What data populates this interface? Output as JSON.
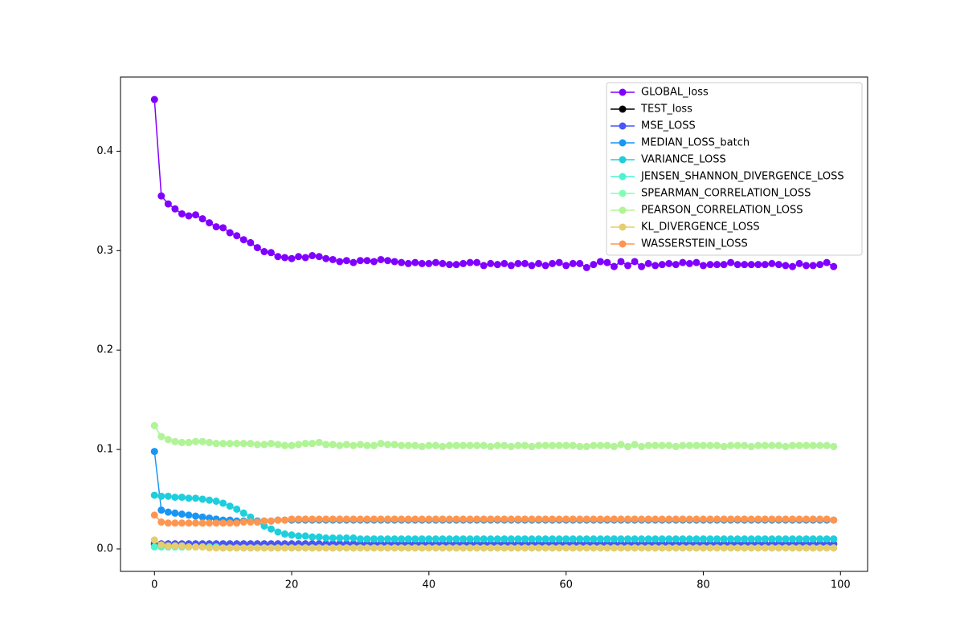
{
  "chart_data": {
    "type": "line",
    "x": [
      0,
      1,
      2,
      3,
      4,
      5,
      6,
      7,
      8,
      9,
      10,
      11,
      12,
      13,
      14,
      15,
      16,
      17,
      18,
      19,
      20,
      21,
      22,
      23,
      24,
      25,
      26,
      27,
      28,
      29,
      30,
      31,
      32,
      33,
      34,
      35,
      36,
      37,
      38,
      39,
      40,
      41,
      42,
      43,
      44,
      45,
      46,
      47,
      48,
      49,
      50,
      51,
      52,
      53,
      54,
      55,
      56,
      57,
      58,
      59,
      60,
      61,
      62,
      63,
      64,
      65,
      66,
      67,
      68,
      69,
      70,
      71,
      72,
      73,
      74,
      75,
      76,
      77,
      78,
      79,
      80,
      81,
      82,
      83,
      84,
      85,
      86,
      87,
      88,
      89,
      90,
      91,
      92,
      93,
      94,
      95,
      96,
      97,
      98,
      99
    ],
    "xlim": [
      -4.95,
      103.95
    ],
    "xticks": [
      0,
      20,
      40,
      60,
      80,
      100
    ],
    "ylim": [
      -0.0226,
      0.4746
    ],
    "yticks": [
      {
        "value": 0,
        "label": "0.0"
      },
      0.1,
      0.2,
      0.3,
      0.4
    ],
    "legend": "upper right",
    "series": [
      {
        "name": "GLOBAL_loss",
        "color": "#8000ff",
        "values": [
          0.452,
          0.355,
          0.347,
          0.342,
          0.337,
          0.335,
          0.336,
          0.332,
          0.328,
          0.324,
          0.323,
          0.318,
          0.315,
          0.311,
          0.308,
          0.303,
          0.299,
          0.298,
          0.294,
          0.293,
          0.292,
          0.294,
          0.293,
          0.295,
          0.294,
          0.292,
          0.291,
          0.289,
          0.29,
          0.288,
          0.29,
          0.29,
          0.289,
          0.291,
          0.29,
          0.289,
          0.288,
          0.287,
          0.288,
          0.287,
          0.287,
          0.288,
          0.287,
          0.286,
          0.286,
          0.287,
          0.288,
          0.288,
          0.285,
          0.287,
          0.286,
          0.287,
          0.285,
          0.287,
          0.287,
          0.285,
          0.287,
          0.285,
          0.287,
          0.288,
          0.285,
          0.287,
          0.287,
          0.283,
          0.286,
          0.289,
          0.288,
          0.284,
          0.289,
          0.285,
          0.289,
          0.284,
          0.287,
          0.285,
          0.286,
          0.287,
          0.286,
          0.288,
          0.287,
          0.288,
          0.285,
          0.286,
          0.286,
          0.286,
          0.288,
          0.286,
          0.286,
          0.286,
          0.286,
          0.286,
          0.287,
          0.286,
          0.285,
          0.284,
          0.287,
          0.285,
          0.285,
          0.286,
          0.288,
          0.284
        ]
      },
      {
        "name": "TEST_loss",
        "color": "#000000",
        "values": [
          0.005,
          0.005,
          0.005,
          0.005,
          0.005,
          0.005,
          0.005,
          0.005,
          0.005,
          0.005,
          0.005,
          0.005,
          0.005,
          0.005,
          0.005,
          0.005,
          0.005,
          0.005,
          0.005,
          0.005,
          0.005,
          0.005,
          0.005,
          0.005,
          0.005,
          0.005,
          0.005,
          0.005,
          0.005,
          0.005,
          0.005,
          0.005,
          0.005,
          0.005,
          0.005,
          0.005,
          0.005,
          0.005,
          0.005,
          0.005,
          0.005,
          0.005,
          0.005,
          0.005,
          0.005,
          0.005,
          0.005,
          0.005,
          0.005,
          0.005,
          0.005,
          0.005,
          0.005,
          0.005,
          0.005,
          0.005,
          0.005,
          0.005,
          0.005,
          0.005,
          0.005,
          0.005,
          0.005,
          0.005,
          0.005,
          0.005,
          0.005,
          0.005,
          0.005,
          0.005,
          0.005,
          0.005,
          0.005,
          0.005,
          0.005,
          0.005,
          0.005,
          0.005,
          0.005,
          0.005,
          0.005,
          0.005,
          0.005,
          0.005,
          0.005,
          0.005,
          0.005,
          0.005,
          0.005,
          0.005,
          0.005,
          0.005,
          0.005,
          0.005,
          0.005,
          0.005,
          0.005,
          0.005,
          0.005,
          0.005
        ]
      },
      {
        "name": "MSE_LOSS",
        "color": "#4856fb",
        "values": [
          0.004,
          0.005,
          0.005,
          0.005,
          0.005,
          0.005,
          0.005,
          0.005,
          0.005,
          0.005,
          0.005,
          0.005,
          0.005,
          0.005,
          0.005,
          0.005,
          0.005,
          0.005,
          0.005,
          0.005,
          0.005,
          0.005,
          0.005,
          0.005,
          0.005,
          0.005,
          0.005,
          0.005,
          0.005,
          0.005,
          0.005,
          0.005,
          0.005,
          0.005,
          0.005,
          0.005,
          0.005,
          0.005,
          0.005,
          0.005,
          0.005,
          0.005,
          0.005,
          0.005,
          0.005,
          0.005,
          0.005,
          0.005,
          0.005,
          0.005,
          0.005,
          0.005,
          0.005,
          0.005,
          0.005,
          0.005,
          0.005,
          0.005,
          0.005,
          0.005,
          0.005,
          0.005,
          0.005,
          0.005,
          0.005,
          0.005,
          0.005,
          0.005,
          0.005,
          0.005,
          0.005,
          0.005,
          0.005,
          0.005,
          0.005,
          0.005,
          0.005,
          0.005,
          0.005,
          0.005,
          0.005,
          0.005,
          0.005,
          0.005,
          0.005,
          0.005,
          0.005,
          0.005,
          0.005,
          0.005,
          0.005,
          0.005,
          0.005,
          0.005,
          0.005,
          0.005,
          0.005,
          0.005,
          0.005,
          0.005
        ]
      },
      {
        "name": "MEDIAN_LOSS_batch",
        "color": "#1996f3",
        "values": [
          0.098,
          0.039,
          0.037,
          0.036,
          0.035,
          0.034,
          0.033,
          0.032,
          0.031,
          0.03,
          0.029,
          0.029,
          0.028,
          0.028,
          0.028,
          0.028,
          0.028,
          0.028,
          0.029,
          0.029,
          0.029,
          0.029,
          0.029,
          0.029,
          0.029,
          0.029,
          0.029,
          0.029,
          0.029,
          0.029,
          0.029,
          0.029,
          0.029,
          0.029,
          0.029,
          0.029,
          0.029,
          0.029,
          0.029,
          0.029,
          0.029,
          0.029,
          0.029,
          0.029,
          0.029,
          0.029,
          0.029,
          0.029,
          0.029,
          0.029,
          0.029,
          0.029,
          0.029,
          0.029,
          0.029,
          0.029,
          0.029,
          0.029,
          0.029,
          0.029,
          0.029,
          0.029,
          0.029,
          0.029,
          0.029,
          0.029,
          0.029,
          0.029,
          0.029,
          0.029,
          0.029,
          0.029,
          0.029,
          0.029,
          0.029,
          0.029,
          0.029,
          0.029,
          0.029,
          0.029,
          0.029,
          0.029,
          0.029,
          0.029,
          0.029,
          0.029,
          0.029,
          0.029,
          0.029,
          0.029,
          0.029,
          0.029,
          0.029,
          0.029,
          0.029,
          0.029,
          0.029,
          0.029,
          0.029,
          0.029
        ]
      },
      {
        "name": "VARIANCE_LOSS",
        "color": "#1dcfdd",
        "values": [
          0.054,
          0.053,
          0.053,
          0.052,
          0.052,
          0.051,
          0.051,
          0.05,
          0.049,
          0.048,
          0.046,
          0.043,
          0.04,
          0.036,
          0.032,
          0.027,
          0.023,
          0.02,
          0.017,
          0.015,
          0.014,
          0.013,
          0.013,
          0.012,
          0.012,
          0.011,
          0.011,
          0.011,
          0.011,
          0.011,
          0.01,
          0.01,
          0.01,
          0.01,
          0.01,
          0.01,
          0.01,
          0.01,
          0.01,
          0.01,
          0.01,
          0.01,
          0.01,
          0.01,
          0.01,
          0.01,
          0.01,
          0.01,
          0.01,
          0.01,
          0.01,
          0.01,
          0.01,
          0.01,
          0.01,
          0.01,
          0.01,
          0.01,
          0.01,
          0.01,
          0.01,
          0.01,
          0.01,
          0.01,
          0.01,
          0.01,
          0.01,
          0.01,
          0.01,
          0.01,
          0.01,
          0.01,
          0.01,
          0.01,
          0.01,
          0.01,
          0.01,
          0.01,
          0.01,
          0.01,
          0.01,
          0.01,
          0.01,
          0.01,
          0.01,
          0.01,
          0.01,
          0.01,
          0.01,
          0.01,
          0.01,
          0.01,
          0.01,
          0.01,
          0.01,
          0.01,
          0.01,
          0.01,
          0.01,
          0.01
        ]
      },
      {
        "name": "JENSEN_SHANNON_DIVERGENCE_LOSS",
        "color": "#4df3ce",
        "values": [
          0.002,
          0.002,
          0.002,
          0.002,
          0.002,
          0.002,
          0.002,
          0.002,
          0.002,
          0.002,
          0.001,
          0.001,
          0.001,
          0.001,
          0.001,
          0.001,
          0.001,
          0.001,
          0.001,
          0.001,
          0.001,
          0.001,
          0.001,
          0.001,
          0.001,
          0.001,
          0.001,
          0.001,
          0.001,
          0.001,
          0.001,
          0.001,
          0.001,
          0.001,
          0.001,
          0.001,
          0.001,
          0.001,
          0.001,
          0.001,
          0.001,
          0.001,
          0.001,
          0.001,
          0.001,
          0.001,
          0.001,
          0.001,
          0.001,
          0.001,
          0.001,
          0.001,
          0.001,
          0.001,
          0.001,
          0.001,
          0.001,
          0.001,
          0.001,
          0.001,
          0.001,
          0.001,
          0.001,
          0.001,
          0.001,
          0.001,
          0.001,
          0.001,
          0.001,
          0.001,
          0.001,
          0.001,
          0.001,
          0.001,
          0.001,
          0.001,
          0.001,
          0.001,
          0.001,
          0.001,
          0.001,
          0.001,
          0.001,
          0.001,
          0.001,
          0.001,
          0.001,
          0.001,
          0.001,
          0.001,
          0.001,
          0.001,
          0.001,
          0.001,
          0.001,
          0.001,
          0.001,
          0.001,
          0.001,
          0.001
        ]
      },
      {
        "name": "SPEARMAN_CORRELATION_LOSS",
        "color": "#80ffb4",
        "values": [
          0.124,
          0.113,
          0.11,
          0.108,
          0.107,
          0.107,
          0.108,
          0.108,
          0.107,
          0.106,
          0.106,
          0.106,
          0.106,
          0.106,
          0.106,
          0.105,
          0.105,
          0.106,
          0.105,
          0.104,
          0.104,
          0.105,
          0.106,
          0.106,
          0.107,
          0.105,
          0.105,
          0.104,
          0.105,
          0.104,
          0.105,
          0.104,
          0.104,
          0.106,
          0.105,
          0.105,
          0.104,
          0.104,
          0.104,
          0.103,
          0.104,
          0.104,
          0.103,
          0.104,
          0.104,
          0.104,
          0.104,
          0.104,
          0.104,
          0.103,
          0.104,
          0.104,
          0.103,
          0.104,
          0.104,
          0.103,
          0.104,
          0.104,
          0.104,
          0.104,
          0.104,
          0.104,
          0.103,
          0.103,
          0.104,
          0.104,
          0.104,
          0.103,
          0.105,
          0.103,
          0.105,
          0.103,
          0.104,
          0.104,
          0.104,
          0.104,
          0.103,
          0.104,
          0.104,
          0.104,
          0.104,
          0.104,
          0.104,
          0.103,
          0.104,
          0.104,
          0.104,
          0.103,
          0.104,
          0.104,
          0.104,
          0.104,
          0.103,
          0.104,
          0.104,
          0.104,
          0.104,
          0.104,
          0.104,
          0.103
        ]
      },
      {
        "name": "PEARSON_CORRELATION_LOSS",
        "color": "#b2f396",
        "values": [
          0.124,
          0.113,
          0.11,
          0.108,
          0.107,
          0.107,
          0.108,
          0.108,
          0.107,
          0.106,
          0.106,
          0.106,
          0.106,
          0.106,
          0.106,
          0.105,
          0.105,
          0.106,
          0.105,
          0.104,
          0.104,
          0.105,
          0.106,
          0.106,
          0.107,
          0.105,
          0.105,
          0.104,
          0.105,
          0.104,
          0.105,
          0.104,
          0.104,
          0.106,
          0.105,
          0.105,
          0.104,
          0.104,
          0.104,
          0.103,
          0.104,
          0.104,
          0.103,
          0.104,
          0.104,
          0.104,
          0.104,
          0.104,
          0.104,
          0.103,
          0.104,
          0.104,
          0.103,
          0.104,
          0.104,
          0.103,
          0.104,
          0.104,
          0.104,
          0.104,
          0.104,
          0.104,
          0.103,
          0.103,
          0.104,
          0.104,
          0.104,
          0.103,
          0.105,
          0.103,
          0.105,
          0.103,
          0.104,
          0.104,
          0.104,
          0.104,
          0.103,
          0.104,
          0.104,
          0.104,
          0.104,
          0.104,
          0.104,
          0.103,
          0.104,
          0.104,
          0.104,
          0.103,
          0.104,
          0.104,
          0.104,
          0.104,
          0.103,
          0.104,
          0.104,
          0.104,
          0.104,
          0.104,
          0.104,
          0.103
        ]
      },
      {
        "name": "KL_DIVERGENCE_LOSS",
        "color": "#e6cd6e",
        "values": [
          0.009,
          0.004,
          0.003,
          0.003,
          0.003,
          0.002,
          0.002,
          0.002,
          0.001,
          0.001,
          0.001,
          0.001,
          0.001,
          0.001,
          0.001,
          0.001,
          0.001,
          0.001,
          0.001,
          0.001,
          0.001,
          0.001,
          0.001,
          0.001,
          0.001,
          0.001,
          0.001,
          0.001,
          0.001,
          0.001,
          0.001,
          0.001,
          0.001,
          0.001,
          0.001,
          0.001,
          0.001,
          0.001,
          0.001,
          0.001,
          0.001,
          0.001,
          0.001,
          0.001,
          0.001,
          0.001,
          0.001,
          0.001,
          0.001,
          0.001,
          0.001,
          0.001,
          0.001,
          0.001,
          0.001,
          0.001,
          0.001,
          0.001,
          0.001,
          0.001,
          0.001,
          0.001,
          0.001,
          0.001,
          0.001,
          0.001,
          0.001,
          0.001,
          0.001,
          0.001,
          0.001,
          0.001,
          0.001,
          0.001,
          0.001,
          0.001,
          0.001,
          0.001,
          0.001,
          0.001,
          0.001,
          0.001,
          0.001,
          0.001,
          0.001,
          0.001,
          0.001,
          0.001,
          0.001,
          0.001,
          0.001,
          0.001,
          0.001,
          0.001,
          0.001,
          0.001,
          0.001,
          0.001,
          0.001,
          0.001
        ]
      },
      {
        "name": "WASSERSTEIN_LOSS",
        "color": "#ff9650",
        "values": [
          0.034,
          0.027,
          0.026,
          0.026,
          0.026,
          0.026,
          0.026,
          0.026,
          0.026,
          0.026,
          0.026,
          0.026,
          0.026,
          0.027,
          0.027,
          0.027,
          0.028,
          0.028,
          0.029,
          0.029,
          0.03,
          0.03,
          0.03,
          0.03,
          0.03,
          0.03,
          0.03,
          0.03,
          0.03,
          0.03,
          0.03,
          0.03,
          0.03,
          0.03,
          0.03,
          0.03,
          0.03,
          0.03,
          0.03,
          0.03,
          0.03,
          0.03,
          0.03,
          0.03,
          0.03,
          0.03,
          0.03,
          0.03,
          0.03,
          0.03,
          0.03,
          0.03,
          0.03,
          0.03,
          0.03,
          0.03,
          0.03,
          0.03,
          0.03,
          0.03,
          0.03,
          0.03,
          0.03,
          0.03,
          0.03,
          0.03,
          0.03,
          0.03,
          0.03,
          0.03,
          0.03,
          0.03,
          0.03,
          0.03,
          0.03,
          0.03,
          0.03,
          0.03,
          0.03,
          0.03,
          0.03,
          0.03,
          0.03,
          0.03,
          0.03,
          0.03,
          0.03,
          0.03,
          0.03,
          0.03,
          0.03,
          0.03,
          0.03,
          0.03,
          0.03,
          0.03,
          0.03,
          0.03,
          0.03,
          0.029
        ]
      }
    ]
  }
}
